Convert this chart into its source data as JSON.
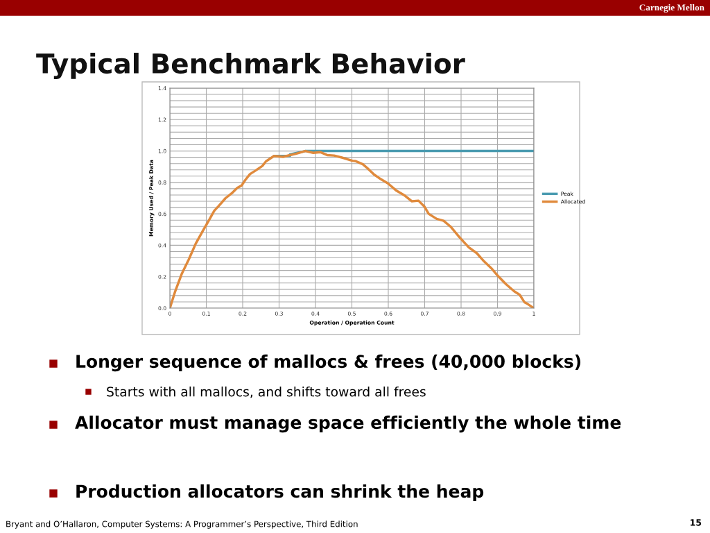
{
  "chart_data": {
    "type": "line",
    "title": "Typical Benchmark Behavior",
    "xlabel": "Operation / Operation Count",
    "ylabel": "Memory Used / Peak Data",
    "xlim": [
      0,
      1
    ],
    "xticks": [
      0,
      0.1,
      0.2,
      0.3,
      0.4,
      0.5,
      0.6,
      0.7,
      0.8,
      0.9,
      1
    ],
    "ylim": [
      0,
      1.4
    ],
    "yticks": [
      {
        "value": 0,
        "label": "0.0"
      },
      {
        "value": 0.04,
        "label": null
      },
      {
        "value": 0.08,
        "label": null
      },
      {
        "value": 0.12,
        "label": null
      },
      {
        "value": 0.16,
        "label": null
      },
      {
        "value": 0.2,
        "label": "0.2"
      },
      {
        "value": 0.24,
        "label": null
      },
      {
        "value": 0.28,
        "label": null
      },
      {
        "value": 0.32,
        "label": null
      },
      {
        "value": 0.36,
        "label": null
      },
      {
        "value": 0.4,
        "label": "0.4"
      },
      {
        "value": 0.44,
        "label": null
      },
      {
        "value": 0.48,
        "label": null
      },
      {
        "value": 0.52,
        "label": null
      },
      {
        "value": 0.56,
        "label": null
      },
      {
        "value": 0.6,
        "label": "0.6"
      },
      {
        "value": 0.64,
        "label": null
      },
      {
        "value": 0.68,
        "label": null
      },
      {
        "value": 0.72,
        "label": null
      },
      {
        "value": 0.76,
        "label": null
      },
      {
        "value": 0.8,
        "label": "0.8"
      },
      {
        "value": 0.84,
        "label": null
      },
      {
        "value": 0.88,
        "label": null
      },
      {
        "value": 0.92,
        "label": null
      },
      {
        "value": 0.96,
        "label": null
      },
      {
        "value": 1.0,
        "label": "1.0"
      },
      {
        "value": 1.04,
        "label": null
      },
      {
        "value": 1.08,
        "label": null
      },
      {
        "value": 1.12,
        "label": null
      },
      {
        "value": 1.16,
        "label": null
      },
      {
        "value": 1.2,
        "label": "1.2"
      },
      {
        "value": 1.24,
        "label": null
      },
      {
        "value": 1.28,
        "label": null
      },
      {
        "value": 1.32,
        "label": null
      },
      {
        "value": 1.36,
        "label": null
      },
      {
        "value": 1.4,
        "label": "1.4"
      }
    ],
    "grid": true,
    "legend": "right",
    "marker": "none",
    "line_style": "solid",
    "series": [
      {
        "name": "Peak",
        "color": "#4a9bb0",
        "x": [
          0.286,
          0.33,
          0.33,
          0.372,
          1.0
        ],
        "values": [
          0.968,
          0.968,
          0.978,
          1.0,
          1.0
        ]
      },
      {
        "name": "Allocated",
        "color": "#e08a3c",
        "x": [
          0,
          0.014,
          0.033,
          0.052,
          0.071,
          0.09,
          0.109,
          0.122,
          0.134,
          0.153,
          0.172,
          0.185,
          0.197,
          0.207,
          0.22,
          0.235,
          0.254,
          0.264,
          0.286,
          0.311,
          0.33,
          0.346,
          0.372,
          0.394,
          0.413,
          0.432,
          0.451,
          0.476,
          0.501,
          0.511,
          0.53,
          0.543,
          0.561,
          0.58,
          0.599,
          0.621,
          0.646,
          0.665,
          0.683,
          0.699,
          0.711,
          0.733,
          0.752,
          0.771,
          0.796,
          0.821,
          0.843,
          0.861,
          0.883,
          0.902,
          0.924,
          0.946,
          0.961,
          0.974,
          0.983,
          1.0
        ],
        "values": [
          0,
          0.103,
          0.22,
          0.31,
          0.41,
          0.49,
          0.566,
          0.62,
          0.65,
          0.7,
          0.735,
          0.765,
          0.78,
          0.815,
          0.853,
          0.875,
          0.905,
          0.934,
          0.968,
          0.963,
          0.974,
          0.982,
          1.0,
          0.988,
          0.993,
          0.974,
          0.971,
          0.956,
          0.938,
          0.935,
          0.916,
          0.89,
          0.85,
          0.82,
          0.794,
          0.75,
          0.715,
          0.68,
          0.684,
          0.647,
          0.6,
          0.568,
          0.556,
          0.519,
          0.45,
          0.387,
          0.35,
          0.303,
          0.254,
          0.203,
          0.151,
          0.107,
          0.085,
          0.038,
          0.026,
          0
        ]
      }
    ],
    "annotations": [
      "Carnegie Mellon",
      "Longer sequence of mallocs & frees (40,000 blocks)",
      "Starts with all mallocs, and shifts toward all frees",
      "Allocator must manage space efficiently the whole time",
      "Production allocators can shrink the heap",
      "Bryant and O’Hallaron, Computer Systems: A Programmer’s Perspective, Third Edition",
      "15"
    ]
  }
}
